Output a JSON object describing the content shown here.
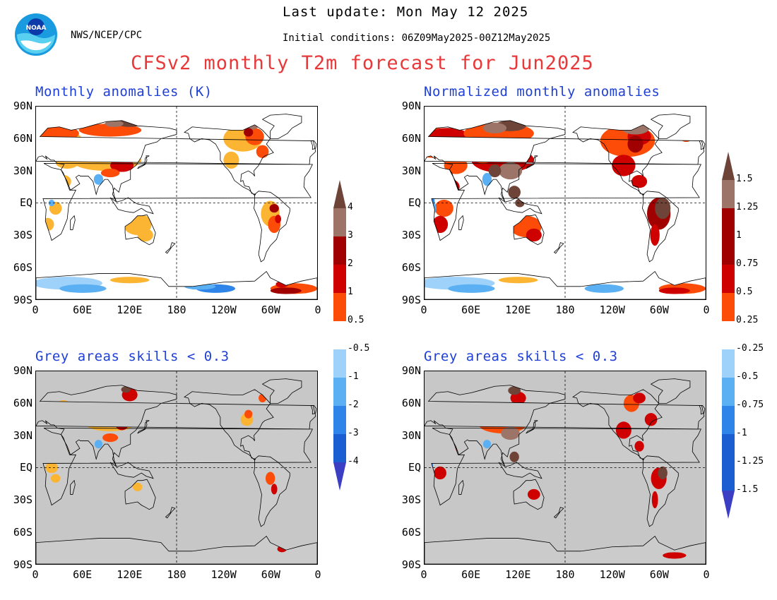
{
  "header": {
    "last_update": "Last update: Mon May 12 2025",
    "agency": "NWS/NCEP/CPC",
    "initial_conditions": "Initial conditions: 06Z09May2025-00Z12May2025",
    "title": "CFSv2 monthly T2m forecast for Jun2025"
  },
  "panels": [
    {
      "title": "Monthly anomalies (K)",
      "grey_mask": false
    },
    {
      "title": "Normalized monthly anomalies",
      "grey_mask": false
    },
    {
      "title": "Grey areas skills < 0.3",
      "grey_mask": true
    },
    {
      "title": "Grey areas skills < 0.3",
      "grey_mask": true
    }
  ],
  "lat_labels": [
    "90N",
    "60N",
    "30N",
    "EQ",
    "30S",
    "60S",
    "90S"
  ],
  "lon_labels": [
    "0",
    "60E",
    "120E",
    "180",
    "120W",
    "60W",
    "0"
  ],
  "colorbar_left": {
    "labels": [
      "4",
      "3",
      "2",
      "1",
      "0.5",
      "-0.5",
      "-1",
      "-2",
      "-3",
      "-4"
    ]
  },
  "colorbar_right": {
    "labels": [
      "1.5",
      "1.25",
      "1",
      "0.75",
      "0.5",
      "0.25",
      "-0.25",
      "-0.5",
      "-0.75",
      "-1",
      "-1.25",
      "-1.5"
    ]
  },
  "colors": {
    "warm": [
      "#fcb433",
      "#fd4b08",
      "#cf0000",
      "#a00000",
      "#9c7468",
      "#6e4438"
    ],
    "cool": [
      "#9ed2fa",
      "#5ab0f3",
      "#2e84e8",
      "#1a5ed1",
      "#3c3fc4",
      "#2a0f9e"
    ],
    "grey": "#c7c7c7",
    "title": "#e8383a",
    "panel_title": "#1f40d8"
  }
}
